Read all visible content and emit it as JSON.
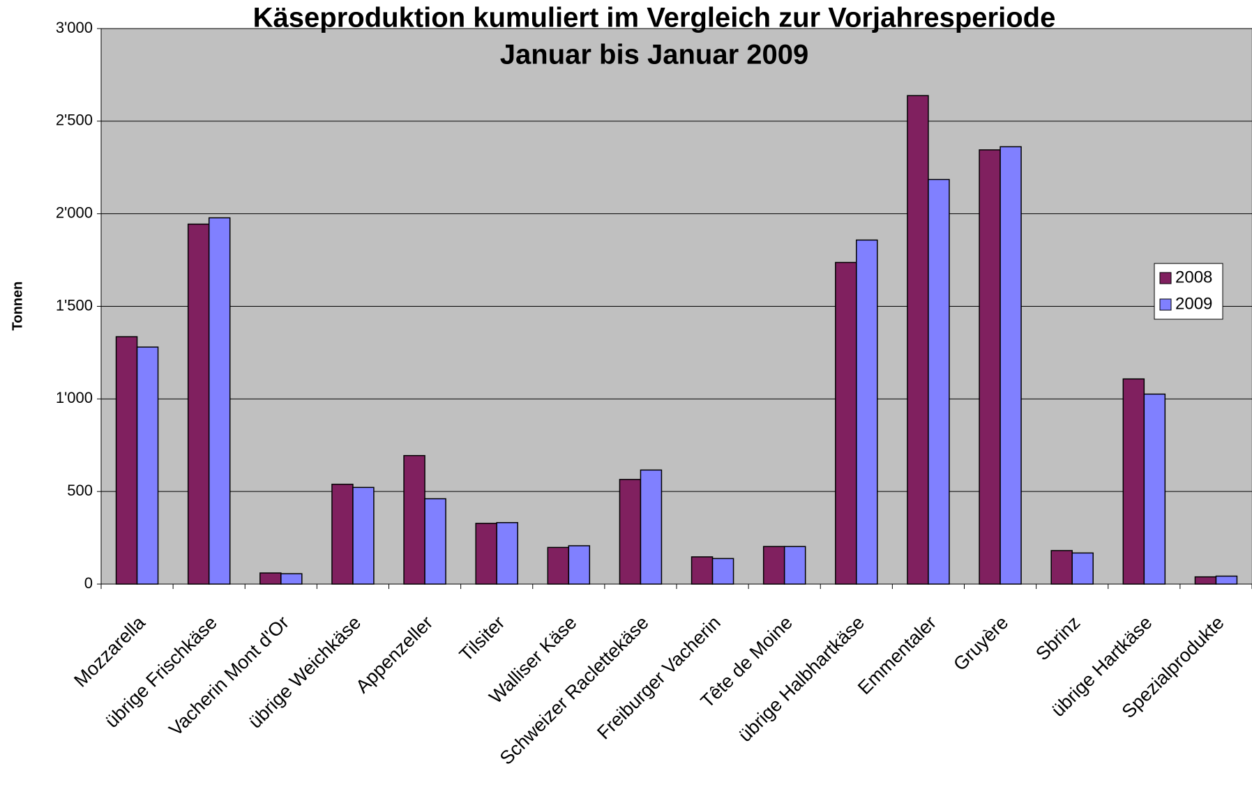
{
  "chart_data": {
    "type": "bar",
    "title": "Käseproduktion kumuliert im Vergleich zur Vorjahresperiode",
    "subtitle": "Januar bis Januar 2009",
    "y_label": "Tonnen",
    "categories": [
      "Mozzarella",
      "übrige Frischkäse",
      "Vacherin Mont d'Or",
      "übrige Weichkäse",
      "Appenzeller",
      "Tilsiter",
      "Walliser Käse",
      "Schweizer Raclettekäse",
      "Freiburger Vacherin",
      "Tête de Moine",
      "übrige Halbhartkäse",
      "Emmentaler",
      "Gruyère",
      "Sbrinz",
      "übrige Hartkäse",
      "Spezialprodukte"
    ],
    "series": [
      {
        "name": "2008",
        "color": "#80205f",
        "values": [
          1336,
          1944,
          60,
          539,
          694,
          328,
          198,
          565,
          147,
          203,
          1737,
          2638,
          2345,
          181,
          1108,
          39
        ]
      },
      {
        "name": "2009",
        "color": "#8080ff",
        "values": [
          1280,
          1978,
          56,
          522,
          461,
          332,
          207,
          616,
          138,
          203,
          1858,
          2185,
          2362,
          168,
          1026,
          43
        ]
      }
    ],
    "ylim": [
      0,
      3000
    ],
    "yticks": [
      0,
      500,
      {
        "value": 1000,
        "label": "1'000"
      },
      {
        "value": 1500,
        "label": "1'500"
      },
      {
        "value": 2000,
        "label": "2'000"
      },
      {
        "value": 2500,
        "label": "2'500"
      },
      {
        "value": 3000,
        "label": "3'000"
      }
    ],
    "grid": true,
    "legend": "right"
  }
}
